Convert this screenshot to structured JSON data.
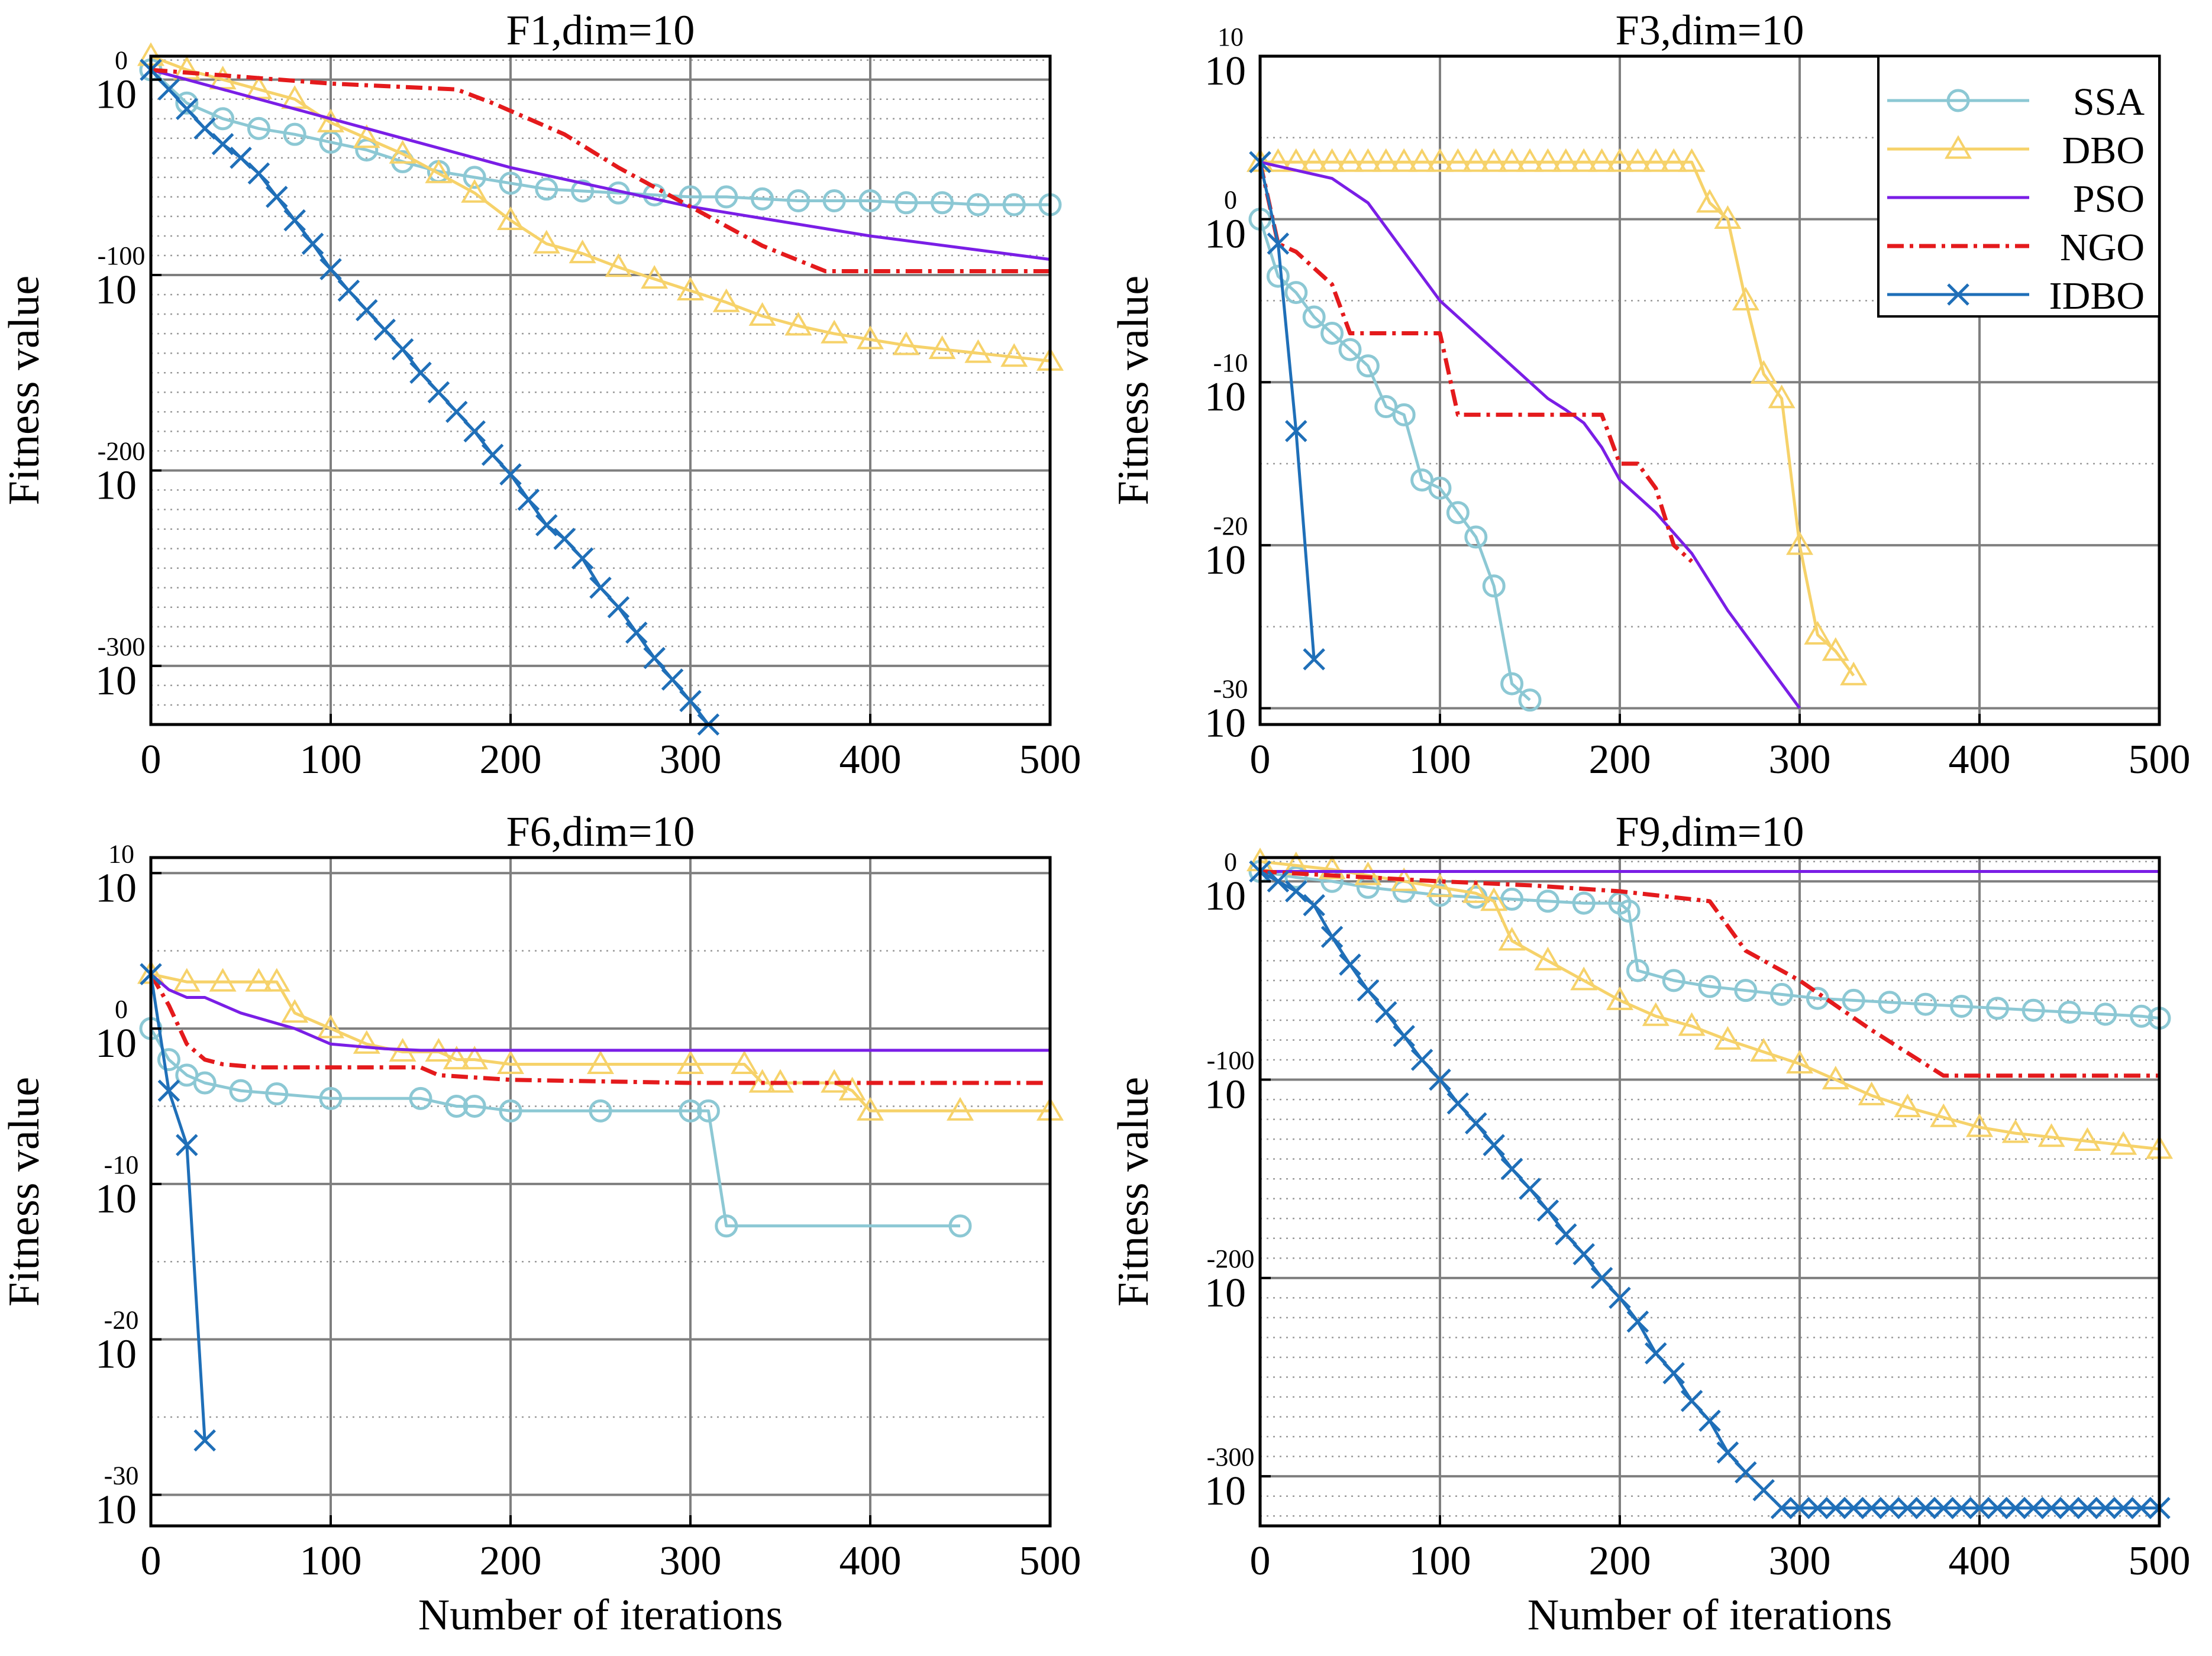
{
  "chart_data": [
    {
      "type": "line",
      "title": "F1,dim=10",
      "xlabel": "",
      "ylabel": "Fitness value",
      "xlim": [
        0,
        500
      ],
      "xticks": [
        0,
        100,
        200,
        300,
        400,
        500
      ],
      "xtick_labels": [
        "0",
        "100",
        "200",
        "300",
        "400",
        "500"
      ],
      "yscale": "log",
      "ylim_exp": [
        -330,
        12
      ],
      "ytick_exps": [
        0,
        -100,
        -200,
        -300
      ],
      "ytick_exponent_labels": [
        "0",
        "-100",
        "-200",
        "-300"
      ],
      "ytick_base": "10",
      "minor_step_exp": 10,
      "series": [
        {
          "name": "SSA",
          "marker": "circle",
          "x": [
            0,
            20,
            40,
            60,
            80,
            100,
            120,
            140,
            160,
            180,
            200,
            220,
            240,
            260,
            280,
            300,
            320,
            340,
            360,
            380,
            400,
            420,
            440,
            460,
            480,
            500
          ],
          "y": [
            5,
            -12,
            -20,
            -25,
            -28,
            -32,
            -36,
            -42,
            -47,
            -50,
            -53,
            -56,
            -57,
            -58,
            -59,
            -60,
            -60,
            -61,
            -62,
            -62,
            -62,
            -63,
            -63,
            -64,
            -64,
            -64
          ]
        },
        {
          "name": "DBO",
          "marker": "triangle",
          "x": [
            0,
            20,
            40,
            60,
            80,
            100,
            120,
            140,
            160,
            180,
            200,
            220,
            240,
            260,
            280,
            300,
            320,
            340,
            360,
            380,
            400,
            420,
            440,
            460,
            480,
            500
          ],
          "y": [
            12,
            5,
            0,
            -5,
            -10,
            -22,
            -30,
            -38,
            -48,
            -58,
            -72,
            -84,
            -89,
            -96,
            -102,
            -108,
            -114,
            -121,
            -126,
            -130,
            -133,
            -136,
            -138,
            -140,
            -142,
            -144
          ]
        },
        {
          "name": "PSO",
          "marker": "none",
          "x": [
            0,
            100,
            200,
            300,
            400,
            500
          ],
          "y": [
            5,
            -20,
            -45,
            -65,
            -80,
            -92
          ]
        },
        {
          "name": "NGO",
          "marker": "none",
          "x": [
            0,
            100,
            170,
            190,
            230,
            260,
            300,
            340,
            375,
            500
          ],
          "y": [
            5,
            -2,
            -5,
            -12,
            -28,
            -45,
            -65,
            -85,
            -98,
            -98
          ]
        },
        {
          "name": "IDBO",
          "marker": "x",
          "x": [
            0,
            10,
            20,
            30,
            40,
            50,
            60,
            70,
            80,
            90,
            100,
            110,
            120,
            130,
            140,
            150,
            160,
            170,
            180,
            190,
            200,
            210,
            220,
            230,
            240,
            250,
            260,
            270,
            280,
            290,
            300,
            310
          ],
          "y": [
            5,
            -5,
            -15,
            -25,
            -33,
            -40,
            -48,
            -60,
            -72,
            -84,
            -97,
            -108,
            -118,
            -128,
            -138,
            -150,
            -160,
            -170,
            -180,
            -192,
            -202,
            -215,
            -228,
            -235,
            -245,
            -260,
            -270,
            -283,
            -296,
            -307,
            -318,
            -330
          ]
        }
      ]
    },
    {
      "type": "line",
      "title": "F3,dim=10",
      "xlabel": "",
      "ylabel": "Fitness value",
      "xlim": [
        0,
        500
      ],
      "xticks": [
        0,
        100,
        200,
        300,
        400,
        500
      ],
      "xtick_labels": [
        "0",
        "100",
        "200",
        "300",
        "400",
        "500"
      ],
      "yscale": "log",
      "ylim_exp": [
        -31,
        10
      ],
      "ytick_exps": [
        10,
        0,
        -10,
        -20,
        -30
      ],
      "ytick_exponent_labels": [
        "10",
        "0",
        "-10",
        "-20",
        "-30"
      ],
      "ytick_base": "10",
      "minor_step_exp": 5,
      "legend": [
        "SSA",
        "DBO",
        "PSO",
        "NGO",
        "IDBO"
      ],
      "legend_position": "top-right",
      "series": [
        {
          "name": "SSA",
          "marker": "circle",
          "x": [
            0,
            10,
            20,
            30,
            40,
            50,
            60,
            70,
            80,
            90,
            100,
            110,
            120,
            130,
            140,
            150
          ],
          "y": [
            0,
            -3.5,
            -4.5,
            -6,
            -7,
            -8,
            -9,
            -11.5,
            -12,
            -16,
            -16.5,
            -18,
            -19.5,
            -22.5,
            -28.5,
            -29.5
          ]
        },
        {
          "name": "DBO",
          "marker": "triangle",
          "x": [
            0,
            10,
            20,
            30,
            40,
            50,
            60,
            70,
            80,
            90,
            100,
            110,
            120,
            130,
            140,
            150,
            160,
            170,
            180,
            190,
            200,
            210,
            220,
            230,
            240,
            250,
            260,
            270,
            280,
            290,
            300,
            310,
            320,
            330
          ],
          "y": [
            3.5,
            3.5,
            3.5,
            3.5,
            3.5,
            3.5,
            3.5,
            3.5,
            3.5,
            3.5,
            3.5,
            3.5,
            3.5,
            3.5,
            3.5,
            3.5,
            3.5,
            3.5,
            3.5,
            3.5,
            3.5,
            3.5,
            3.5,
            3.5,
            3.5,
            1,
            0,
            -5,
            -9.5,
            -11,
            -20,
            -25.5,
            -26.5,
            -28
          ]
        },
        {
          "name": "PSO",
          "marker": "none",
          "x": [
            0,
            20,
            40,
            60,
            80,
            100,
            120,
            140,
            160,
            170,
            180,
            190,
            200,
            220,
            240,
            260,
            280,
            300
          ],
          "y": [
            3.5,
            3,
            2.5,
            1,
            -2,
            -5,
            -7,
            -9,
            -11,
            -11.7,
            -12.5,
            -14,
            -16,
            -18,
            -20.5,
            -24,
            -27,
            -30
          ]
        },
        {
          "name": "NGO",
          "marker": "none",
          "x": [
            0,
            10,
            20,
            40,
            50,
            60,
            70,
            80,
            90,
            100,
            110,
            120,
            130,
            140,
            150,
            160,
            170,
            180,
            190,
            200,
            210,
            220,
            230,
            240
          ],
          "y": [
            3.5,
            -1.5,
            -2,
            -4,
            -7,
            -7,
            -7,
            -7,
            -7,
            -7,
            -12,
            -12,
            -12,
            -12,
            -12,
            -12,
            -12,
            -12,
            -12,
            -15,
            -15,
            -16.5,
            -20,
            -21
          ]
        },
        {
          "name": "IDBO",
          "marker": "x",
          "x": [
            0,
            10,
            20,
            30
          ],
          "y": [
            3.5,
            -1.5,
            -13,
            -27
          ]
        }
      ]
    },
    {
      "type": "line",
      "title": "F6,dim=10",
      "xlabel": "Number of iterations",
      "ylabel": "Fitness value",
      "xlim": [
        0,
        500
      ],
      "xticks": [
        0,
        100,
        200,
        300,
        400,
        500
      ],
      "xtick_labels": [
        "0",
        "100",
        "200",
        "300",
        "400",
        "500"
      ],
      "yscale": "log",
      "ylim_exp": [
        -32,
        11
      ],
      "ytick_exps": [
        10,
        0,
        -10,
        -20,
        -30
      ],
      "ytick_exponent_labels": [
        "10",
        "0",
        "-10",
        "-20",
        "-30"
      ],
      "ytick_base": "10",
      "minor_step_exp": 5,
      "series": [
        {
          "name": "SSA",
          "marker": "circle",
          "x": [
            0,
            10,
            20,
            30,
            50,
            70,
            100,
            150,
            170,
            180,
            200,
            250,
            300,
            310,
            320,
            450
          ],
          "y": [
            0,
            -2,
            -3,
            -3.5,
            -4,
            -4.2,
            -4.5,
            -4.5,
            -5,
            -5,
            -5.3,
            -5.3,
            -5.3,
            -5.3,
            -12.7,
            -12.7
          ]
        },
        {
          "name": "DBO",
          "marker": "triangle",
          "x": [
            0,
            20,
            40,
            60,
            70,
            80,
            100,
            120,
            140,
            160,
            170,
            180,
            200,
            250,
            300,
            330,
            340,
            350,
            380,
            390,
            400,
            450,
            500
          ],
          "y": [
            3.5,
            3,
            3,
            3,
            3,
            1,
            0,
            -1,
            -1.5,
            -1.5,
            -2,
            -2,
            -2.3,
            -2.3,
            -2.3,
            -2.3,
            -3.5,
            -3.5,
            -3.5,
            -4,
            -5.3,
            -5.3,
            -5.3
          ]
        },
        {
          "name": "PSO",
          "marker": "none",
          "x": [
            0,
            10,
            20,
            30,
            50,
            80,
            100,
            130,
            150,
            200,
            300,
            400,
            500
          ],
          "y": [
            3.5,
            2.5,
            2,
            2,
            1,
            0,
            -1,
            -1.3,
            -1.4,
            -1.4,
            -1.4,
            -1.4,
            -1.4
          ]
        },
        {
          "name": "NGO",
          "marker": "none",
          "x": [
            0,
            10,
            20,
            30,
            40,
            60,
            100,
            150,
            160,
            200,
            300,
            500
          ],
          "y": [
            3.5,
            1.5,
            -1,
            -2,
            -2.3,
            -2.5,
            -2.5,
            -2.5,
            -3,
            -3.3,
            -3.5,
            -3.5
          ]
        },
        {
          "name": "IDBO",
          "marker": "x",
          "x": [
            0,
            10,
            20,
            30
          ],
          "y": [
            3.5,
            -4,
            -7.5,
            -26.5
          ]
        }
      ]
    },
    {
      "type": "line",
      "title": "F9,dim=10",
      "xlabel": "Number of iterations",
      "ylabel": "Fitness value",
      "xlim": [
        0,
        500
      ],
      "xticks": [
        0,
        100,
        200,
        300,
        400,
        500
      ],
      "xtick_labels": [
        "0",
        "100",
        "200",
        "300",
        "400",
        "500"
      ],
      "yscale": "log",
      "ylim_exp": [
        -325,
        12
      ],
      "ytick_exps": [
        0,
        -100,
        -200,
        -300
      ],
      "ytick_exponent_labels": [
        "0",
        "-100",
        "-200",
        "-300"
      ],
      "ytick_base": "10",
      "minor_step_exp": 10,
      "series": [
        {
          "name": "SSA",
          "marker": "circle",
          "x": [
            0,
            20,
            40,
            60,
            80,
            100,
            120,
            140,
            160,
            180,
            200,
            205,
            210,
            230,
            250,
            270,
            290,
            310,
            330,
            350,
            370,
            390,
            410,
            430,
            450,
            470,
            490,
            500
          ],
          "y": [
            5,
            2,
            0,
            -3,
            -5,
            -7,
            -8,
            -9,
            -10,
            -11,
            -11,
            -15,
            -45,
            -50,
            -53,
            -55,
            -57,
            -59,
            -60,
            -61,
            -62,
            -63,
            -64,
            -65,
            -66,
            -67,
            -68,
            -69
          ]
        },
        {
          "name": "DBO",
          "marker": "triangle",
          "x": [
            0,
            20,
            40,
            60,
            80,
            100,
            120,
            130,
            140,
            160,
            180,
            200,
            220,
            240,
            260,
            280,
            300,
            320,
            340,
            360,
            380,
            400,
            420,
            440,
            460,
            480,
            500
          ],
          "y": [
            10,
            8,
            6,
            3,
            0,
            -3,
            -6,
            -10,
            -30,
            -40,
            -50,
            -60,
            -68,
            -73,
            -80,
            -86,
            -92,
            -100,
            -108,
            -114,
            -119,
            -124,
            -127,
            -129,
            -131,
            -133,
            -135
          ]
        },
        {
          "name": "PSO",
          "marker": "none",
          "x": [
            0,
            500
          ],
          "y": [
            5,
            5
          ]
        },
        {
          "name": "NGO",
          "marker": "none",
          "x": [
            0,
            100,
            150,
            200,
            250,
            270,
            300,
            340,
            380,
            500
          ],
          "y": [
            5,
            0,
            -2,
            -5,
            -10,
            -35,
            -50,
            -75,
            -98,
            -98
          ]
        },
        {
          "name": "IDBO",
          "marker": "x",
          "x": [
            0,
            10,
            20,
            30,
            40,
            50,
            60,
            70,
            80,
            90,
            100,
            110,
            120,
            130,
            140,
            150,
            160,
            170,
            180,
            190,
            200,
            210,
            220,
            230,
            240,
            250,
            260,
            270,
            280,
            290,
            300,
            310,
            320,
            330,
            340,
            350,
            360,
            370,
            380,
            390,
            400,
            410,
            420,
            430,
            440,
            450,
            460,
            470,
            480,
            490,
            500
          ],
          "y": [
            5,
            0,
            -5,
            -12,
            -28,
            -42,
            -55,
            -66,
            -78,
            -90,
            -100,
            -112,
            -122,
            -133,
            -145,
            -155,
            -166,
            -178,
            -188,
            -200,
            -210,
            -222,
            -238,
            -248,
            -262,
            -272,
            -288,
            -298,
            -307,
            -316,
            -316,
            -316,
            -316,
            -316,
            -316,
            -316,
            -316,
            -316,
            -316,
            -316,
            -316,
            -316,
            -316,
            -316,
            -316,
            -316,
            -316,
            -316,
            -316,
            -316,
            -316
          ]
        }
      ]
    }
  ],
  "series_styles": {
    "SSA": {
      "color": "#8cc8d4",
      "dash": ""
    },
    "DBO": {
      "color": "#f6d26a",
      "dash": ""
    },
    "PSO": {
      "color": "#7a1ee6",
      "dash": ""
    },
    "NGO": {
      "color": "#e41a1c",
      "dash": "28,10,6,10"
    },
    "IDBO": {
      "color": "#1f6fb8",
      "dash": ""
    }
  }
}
